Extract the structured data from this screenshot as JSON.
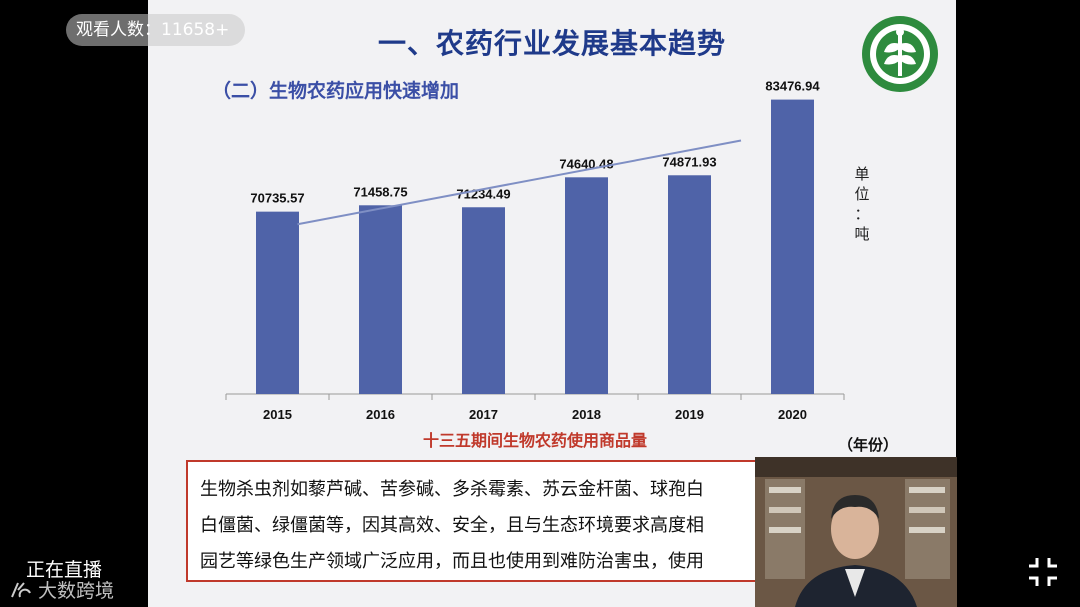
{
  "overlay": {
    "viewer_count": "观看人数：11658+",
    "live_status": "正在直播",
    "watermark": "大数跨境",
    "exit_fullscreen_icon": "collapse-icon"
  },
  "slide": {
    "title": "一、农药行业发展基本趋势",
    "subtitle": "（二）生物农药应用快速增加",
    "unit_label": [
      "单",
      "位",
      "：",
      "吨"
    ],
    "year_unit": "（年份）",
    "chart_caption": "十三五期间生物农药使用商品量",
    "body_lines": [
      "生物杀虫剂如藜芦碱、苦参碱、多杀霉素、苏云金杆菌、球孢白",
      "白僵菌、绿僵菌等，因其高效、安全，且与生态环境要求高度相",
      "园艺等绿色生产领域广泛应用，而且也使用到难防治害虫，使用"
    ]
  },
  "colors": {
    "bar": "#4f63a8",
    "title": "#1f3a8a",
    "caption": "#c0392b",
    "trendline": "#7f8fc4"
  },
  "chart_data": {
    "type": "bar",
    "categories": [
      "2015",
      "2016",
      "2017",
      "2018",
      "2019",
      "2020"
    ],
    "values": [
      70735.57,
      71458.75,
      71234.49,
      74640.48,
      74871.93,
      83476.94
    ],
    "data_labels": [
      "70735.57",
      "71458.75",
      "71234.49",
      "74640.48",
      "74871.93",
      "83476.94"
    ],
    "title": "十三五期间生物农药使用商品量",
    "xlabel": "（年份）",
    "ylabel": "单位：吨",
    "trendline": "linear",
    "grid": false,
    "legend": "none"
  }
}
